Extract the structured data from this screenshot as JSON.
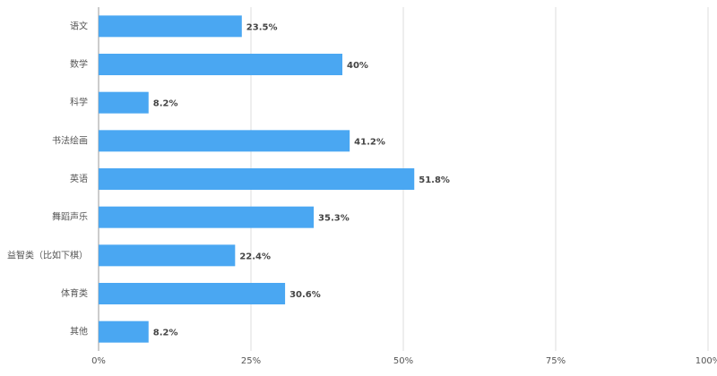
{
  "chart_data": {
    "type": "bar",
    "orientation": "horizontal",
    "categories": [
      "语文",
      "数学",
      "科学",
      "书法绘画",
      "英语",
      "舞蹈声乐",
      "益智类（比如下棋）",
      "体育类",
      "其他"
    ],
    "values": [
      23.5,
      40,
      8.2,
      41.2,
      51.8,
      35.3,
      22.4,
      30.6,
      8.2
    ],
    "value_labels": [
      "23.5%",
      "40%",
      "8.2%",
      "41.2%",
      "51.8%",
      "35.3%",
      "22.4%",
      "30.6%",
      "8.2%"
    ],
    "color": "#4aa7f2",
    "xlim": [
      0,
      100
    ],
    "xticks": [
      {
        "value": 0,
        "label": "0%"
      },
      {
        "value": 25,
        "label": "25%"
      },
      {
        "value": 50,
        "label": "50%"
      },
      {
        "value": 75,
        "label": "75%"
      },
      {
        "value": 100,
        "label": "100%"
      }
    ],
    "grid": true
  }
}
